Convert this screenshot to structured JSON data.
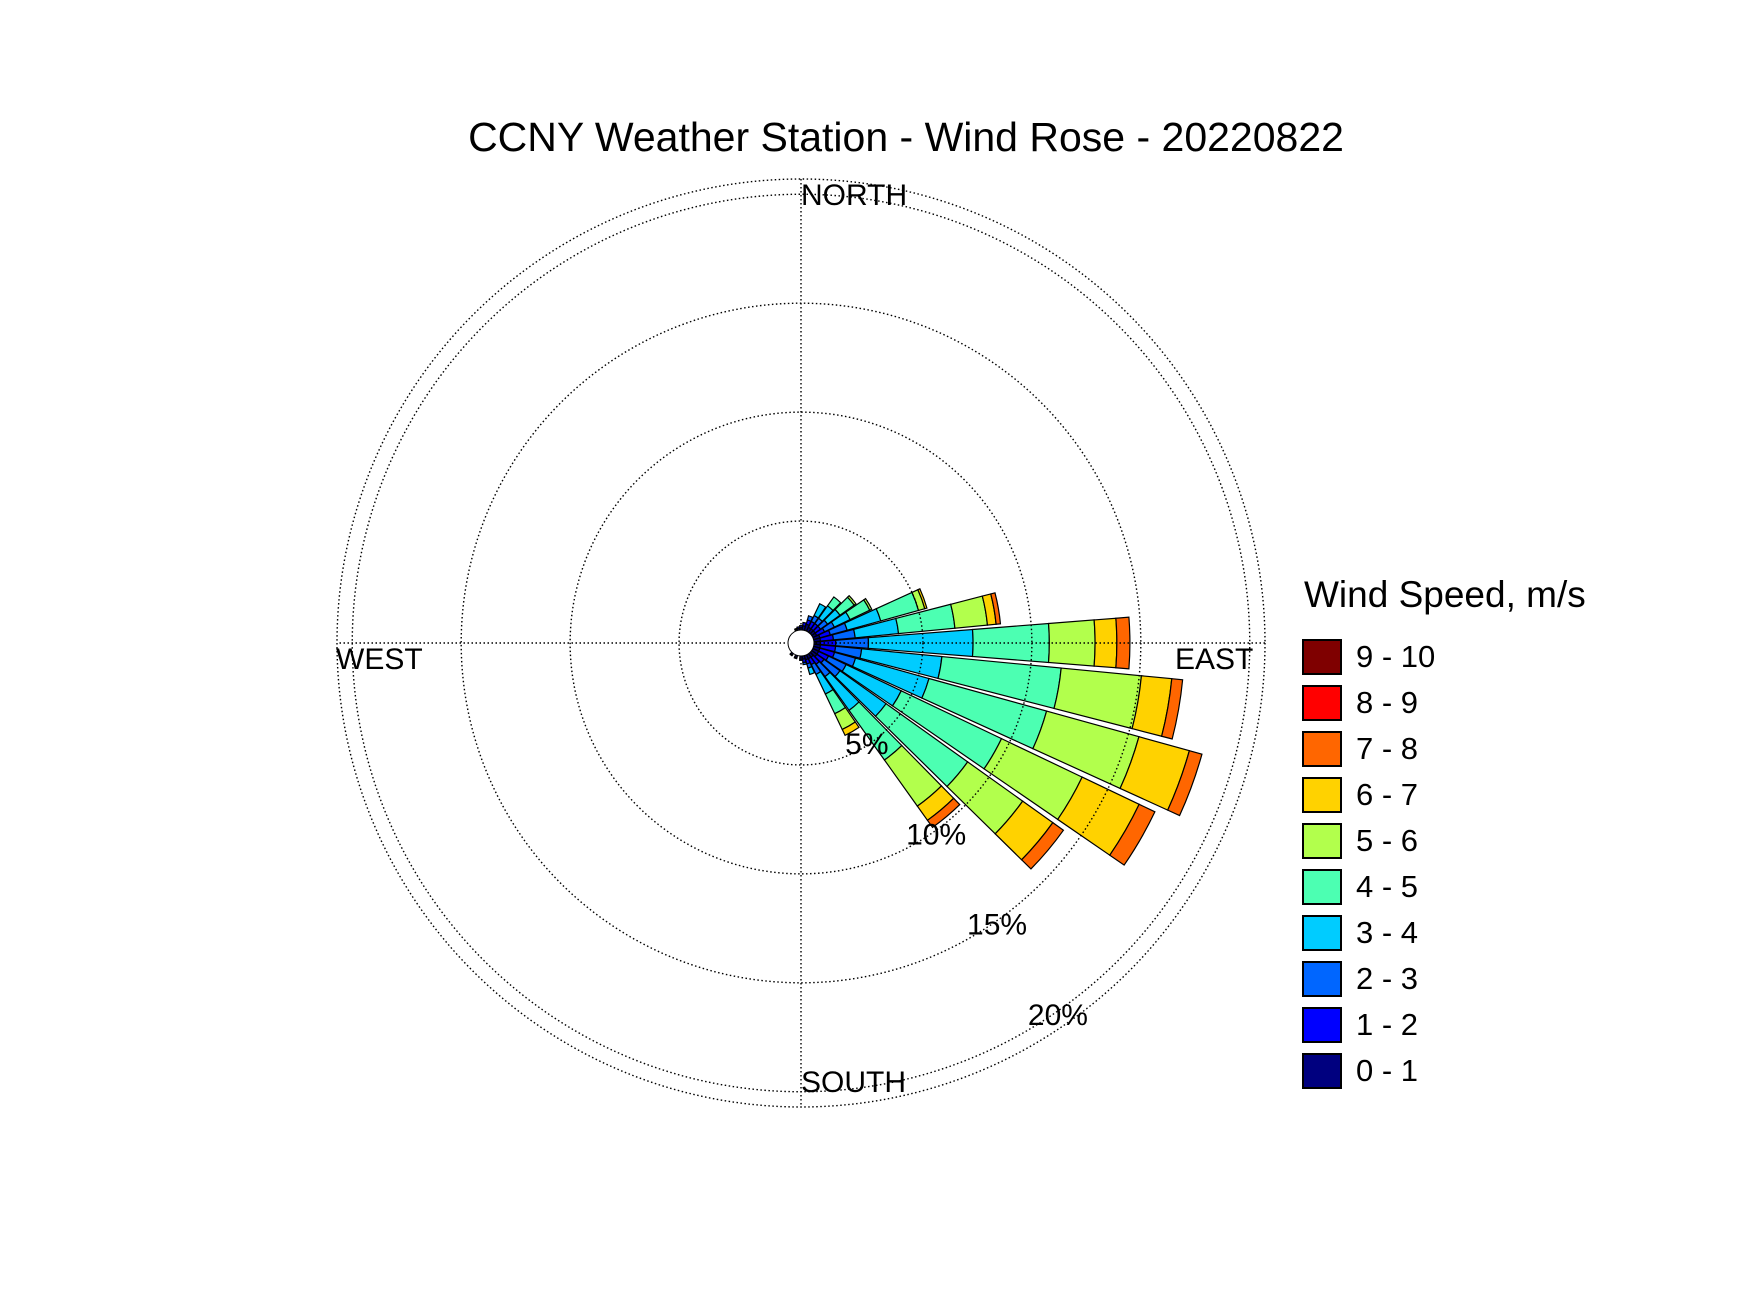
{
  "chart_data": {
    "type": "windrose",
    "title": "CCNY Weather Station - Wind Rose - 20220822",
    "directions": {
      "north": "NORTH",
      "south": "SOUTH",
      "east": "EAST",
      "west": "WEST"
    },
    "radial_ticks": [
      {
        "value": 5,
        "label": "5%"
      },
      {
        "value": 10,
        "label": "10%"
      },
      {
        "value": 15,
        "label": "15%"
      },
      {
        "value": 20,
        "label": "20%"
      }
    ],
    "rmax": 20.7,
    "grid": true,
    "legend_position": "right",
    "legend_title": "Wind Speed, m/s",
    "speed_bins": [
      {
        "label": "0 - 1",
        "color": "#00007f"
      },
      {
        "label": "1 - 2",
        "color": "#0000ff"
      },
      {
        "label": "2 - 3",
        "color": "#0066ff"
      },
      {
        "label": "3 - 4",
        "color": "#00ccff"
      },
      {
        "label": "4 - 5",
        "color": "#4cffb2"
      },
      {
        "label": "5 - 6",
        "color": "#b2ff4c"
      },
      {
        "label": "6 - 7",
        "color": "#ffd200"
      },
      {
        "label": "7 - 8",
        "color": "#ff6600"
      },
      {
        "label": "8 - 9",
        "color": "#ff0000"
      },
      {
        "label": "9 - 10",
        "color": "#7f0000"
      }
    ],
    "sector_width_deg": 9,
    "sectors": [
      {
        "direction_deg": 0,
        "cumulative_percent": [
          0.1,
          0.2
        ]
      },
      {
        "direction_deg": 10,
        "cumulative_percent": [
          0.2,
          0.35
        ]
      },
      {
        "direction_deg": 20,
        "cumulative_percent": [
          0.3,
          0.5,
          0.7
        ]
      },
      {
        "direction_deg": 30,
        "cumulative_percent": [
          0.2,
          0.5,
          0.8,
          1.4
        ]
      },
      {
        "direction_deg": 40,
        "cumulative_percent": [
          0.2,
          0.5,
          0.8,
          1.5,
          2.0
        ]
      },
      {
        "direction_deg": 50,
        "cumulative_percent": [
          0.2,
          0.5,
          0.9,
          1.6,
          2.4,
          2.5
        ]
      },
      {
        "direction_deg": 60,
        "cumulative_percent": [
          0.2,
          0.6,
          1.1,
          1.9,
          2.9,
          3.0
        ]
      },
      {
        "direction_deg": 70,
        "cumulative_percent": [
          0.3,
          0.8,
          1.6,
          3.2,
          5.0,
          5.3,
          5.4
        ]
      },
      {
        "direction_deg": 80,
        "cumulative_percent": [
          0.3,
          0.9,
          1.9,
          3.9,
          6.5,
          8.0,
          8.4,
          8.6
        ]
      },
      {
        "direction_deg": 90,
        "cumulative_percent": [
          0.3,
          1.0,
          2.5,
          7.3,
          10.8,
          12.9,
          13.9,
          14.5
        ]
      },
      {
        "direction_deg": 100,
        "cumulative_percent": [
          0.3,
          1.0,
          2.2,
          5.9,
          11.4,
          15.1,
          16.5,
          17.0
        ]
      },
      {
        "direction_deg": 110,
        "cumulative_percent": [
          0.3,
          1.0,
          2.0,
          5.5,
          11.1,
          15.5,
          17.9,
          18.5
        ]
      },
      {
        "direction_deg": 120,
        "cumulative_percent": [
          0.3,
          0.8,
          1.7,
          4.5,
          9.6,
          13.7,
          16.6,
          17.4
        ]
      },
      {
        "direction_deg": 130,
        "cumulative_percent": [
          0.3,
          0.7,
          1.6,
          4.2,
          8.8,
          11.9,
          13.6,
          14.2
        ]
      },
      {
        "direction_deg": 140,
        "cumulative_percent": [
          0.2,
          0.6,
          1.3,
          3.2,
          6.0,
          8.6,
          9.4,
          9.8
        ]
      },
      {
        "direction_deg": 150,
        "cumulative_percent": [
          0.2,
          0.5,
          1.0,
          2.0,
          3.0,
          3.8,
          4.1
        ]
      },
      {
        "direction_deg": 160,
        "cumulative_percent": [
          0.2,
          0.4,
          0.6,
          0.9
        ]
      },
      {
        "direction_deg": 170,
        "cumulative_percent": [
          0.15,
          0.3,
          0.4
        ]
      },
      {
        "direction_deg": 180,
        "cumulative_percent": [
          0.1,
          0.2
        ]
      },
      {
        "direction_deg": 200,
        "cumulative_percent": [
          0.1,
          0.15
        ]
      },
      {
        "direction_deg": 220,
        "cumulative_percent": [
          0.08,
          0.12
        ]
      },
      {
        "direction_deg": 340,
        "cumulative_percent": [
          0.05,
          0.1
        ]
      },
      {
        "direction_deg": 350,
        "cumulative_percent": [
          0.08,
          0.15
        ]
      }
    ]
  }
}
